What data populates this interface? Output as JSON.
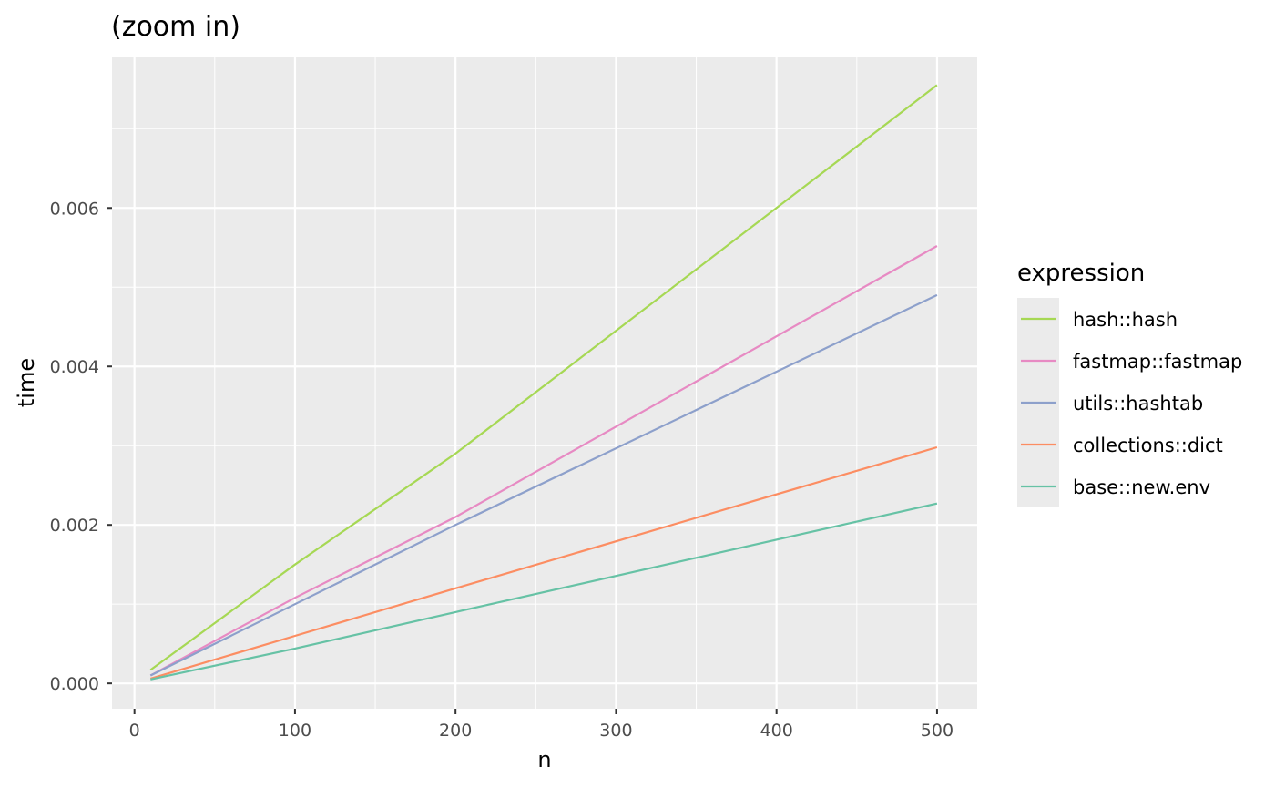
{
  "chart_data": {
    "type": "line",
    "title": "(zoom in)",
    "xlabel": "n",
    "ylabel": "time",
    "xlim": [
      -14,
      525
    ],
    "ylim": [
      -0.00032,
      0.0079
    ],
    "x_ticks": [
      0,
      100,
      200,
      300,
      400,
      500
    ],
    "x_tick_labels": [
      "0",
      "100",
      "200",
      "300",
      "400",
      "500"
    ],
    "y_ticks": [
      0,
      0.002,
      0.004,
      0.006
    ],
    "y_tick_labels": [
      "0.000",
      "0.002",
      "0.004",
      "0.006"
    ],
    "grid": true,
    "legend": {
      "title": "expression",
      "position": "right"
    },
    "x": [
      10,
      100,
      200,
      500
    ],
    "series": [
      {
        "name": "hash::hash",
        "color": "#a6d854",
        "values": [
          0.00017,
          0.0015,
          0.0029,
          0.00755
        ]
      },
      {
        "name": "fastmap::fastmap",
        "color": "#e78ac3",
        "values": [
          0.0001,
          0.00108,
          0.0021,
          0.00552
        ]
      },
      {
        "name": "utils::hashtab",
        "color": "#8da0cb",
        "values": [
          0.0001,
          0.001,
          0.002,
          0.0049
        ]
      },
      {
        "name": "collections::dict",
        "color": "#fc8d62",
        "values": [
          6e-05,
          0.0006,
          0.0012,
          0.00298
        ]
      },
      {
        "name": "base::new.env",
        "color": "#66c2a5",
        "values": [
          5e-05,
          0.00044,
          0.0009,
          0.00227
        ]
      }
    ]
  }
}
